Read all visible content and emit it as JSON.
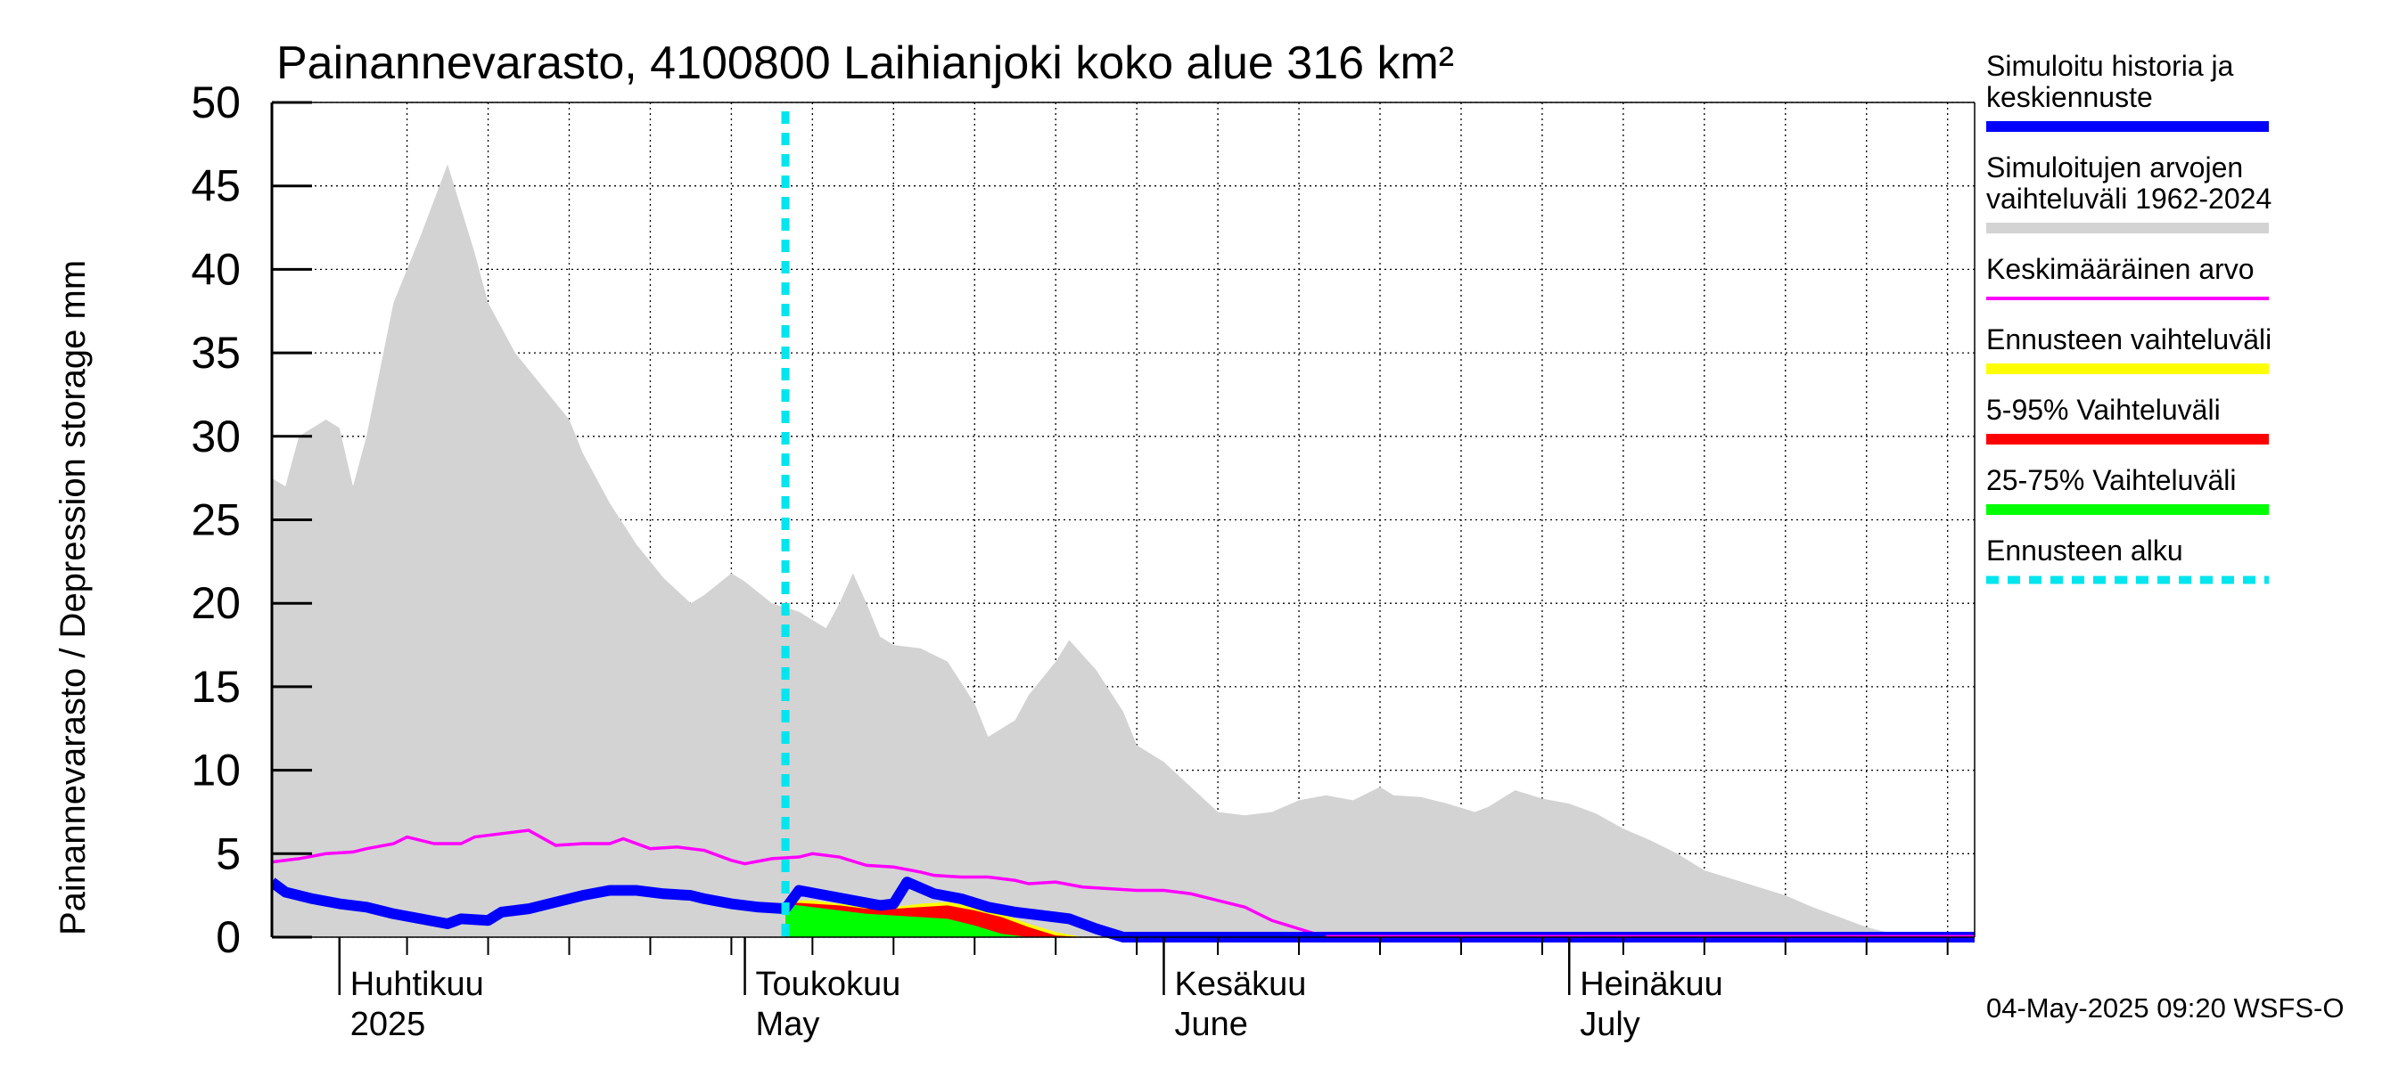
{
  "chart_data": {
    "type": "area",
    "title": "Painannevarasto, 4100800 Laihianjoki koko alue 316 km²",
    "ylabel": "Painannevarasto / Depression storage    mm",
    "ylim": [
      0,
      50
    ],
    "yticks": [
      "0",
      "5",
      "10",
      "15",
      "20",
      "25",
      "30",
      "35",
      "40",
      "45",
      "50"
    ],
    "xlim": [
      "2025-03-27",
      "2025-07-31"
    ],
    "month_labels": [
      {
        "fi": "Huhtikuu",
        "en": "2025",
        "date": "2025-04-01"
      },
      {
        "fi": "Toukokuu",
        "en": "May",
        "date": "2025-05-01"
      },
      {
        "fi": "Kesäkuu",
        "en": "June",
        "date": "2025-06-01"
      },
      {
        "fi": "Heinäkuu",
        "en": "July",
        "date": "2025-07-01"
      }
    ],
    "forecast_start": "2025-05-04",
    "grid": true,
    "legend_placement": "right",
    "colors": {
      "history": "#0000ff",
      "range": "#d3d3d3",
      "mean": "#ff00ff",
      "forecast_range": "#ffff00",
      "p5_95": "#ff0000",
      "p25_75": "#00ff00",
      "forecast_start": "#00e5ee"
    },
    "series": [
      {
        "name": "Simuloitujen arvojen vaihteluväli 1962-2024",
        "kind": "range_band",
        "points": [
          [
            "2025-03-27",
            27.5
          ],
          [
            "2025-03-28",
            27
          ],
          [
            "2025-03-29",
            30
          ],
          [
            "2025-03-30",
            30.5
          ],
          [
            "2025-03-31",
            31
          ],
          [
            "2025-04-01",
            30.5
          ],
          [
            "2025-04-02",
            27
          ],
          [
            "2025-04-03",
            30
          ],
          [
            "2025-04-04",
            34
          ],
          [
            "2025-04-05",
            38
          ],
          [
            "2025-04-07",
            42
          ],
          [
            "2025-04-09",
            46.3
          ],
          [
            "2025-04-11",
            41
          ],
          [
            "2025-04-12",
            38
          ],
          [
            "2025-04-14",
            35
          ],
          [
            "2025-04-16",
            33
          ],
          [
            "2025-04-18",
            31
          ],
          [
            "2025-04-19",
            29
          ],
          [
            "2025-04-21",
            26
          ],
          [
            "2025-04-23",
            23.5
          ],
          [
            "2025-04-25",
            21.5
          ],
          [
            "2025-04-27",
            20
          ],
          [
            "2025-04-28",
            20.5
          ],
          [
            "2025-04-30",
            21.8
          ],
          [
            "2025-05-01",
            21.3
          ],
          [
            "2025-05-03",
            20
          ],
          [
            "2025-05-05",
            19.5
          ],
          [
            "2025-05-07",
            18.5
          ],
          [
            "2025-05-08",
            20
          ],
          [
            "2025-05-09",
            21.8
          ],
          [
            "2025-05-10",
            20
          ],
          [
            "2025-05-11",
            18
          ],
          [
            "2025-05-12",
            17.5
          ],
          [
            "2025-05-14",
            17.3
          ],
          [
            "2025-05-16",
            16.5
          ],
          [
            "2025-05-18",
            14
          ],
          [
            "2025-05-19",
            12
          ],
          [
            "2025-05-21",
            13
          ],
          [
            "2025-05-22",
            14.5
          ],
          [
            "2025-05-24",
            16.5
          ],
          [
            "2025-05-25",
            17.8
          ],
          [
            "2025-05-27",
            16
          ],
          [
            "2025-05-29",
            13.5
          ],
          [
            "2025-05-30",
            11.5
          ],
          [
            "2025-06-01",
            10.5
          ],
          [
            "2025-06-03",
            9
          ],
          [
            "2025-06-05",
            7.5
          ],
          [
            "2025-06-07",
            7.3
          ],
          [
            "2025-06-09",
            7.5
          ],
          [
            "2025-06-11",
            8.2
          ],
          [
            "2025-06-13",
            8.5
          ],
          [
            "2025-06-15",
            8.2
          ],
          [
            "2025-06-17",
            9
          ],
          [
            "2025-06-18",
            8.5
          ],
          [
            "2025-06-20",
            8.4
          ],
          [
            "2025-06-22",
            8
          ],
          [
            "2025-06-24",
            7.5
          ],
          [
            "2025-06-25",
            7.8
          ],
          [
            "2025-06-27",
            8.8
          ],
          [
            "2025-06-29",
            8.3
          ],
          [
            "2025-07-01",
            8
          ],
          [
            "2025-07-03",
            7.4
          ],
          [
            "2025-07-05",
            6.5
          ],
          [
            "2025-07-07",
            5.8
          ],
          [
            "2025-07-09",
            5
          ],
          [
            "2025-07-11",
            4
          ],
          [
            "2025-07-13",
            3.5
          ],
          [
            "2025-07-15",
            3
          ],
          [
            "2025-07-17",
            2.5
          ],
          [
            "2025-07-19",
            1.8
          ],
          [
            "2025-07-21",
            1.2
          ],
          [
            "2025-07-23",
            0.6
          ],
          [
            "2025-07-25",
            0.2
          ],
          [
            "2025-07-27",
            0
          ],
          [
            "2025-07-31",
            0
          ]
        ]
      },
      {
        "name": "Ennusteen vaihteluväli",
        "kind": "forecast_band",
        "points": [
          [
            "2025-05-04",
            2.2
          ],
          [
            "2025-05-06",
            2.2
          ],
          [
            "2025-05-08",
            2
          ],
          [
            "2025-05-10",
            1.8
          ],
          [
            "2025-05-12",
            1.8
          ],
          [
            "2025-05-14",
            2
          ],
          [
            "2025-05-16",
            2.1
          ],
          [
            "2025-05-18",
            1.8
          ],
          [
            "2025-05-20",
            1.4
          ],
          [
            "2025-05-22",
            0.8
          ],
          [
            "2025-05-24",
            0.3
          ],
          [
            "2025-05-26",
            0
          ]
        ]
      },
      {
        "name": "5-95% Vaihteluväli",
        "kind": "forecast_band",
        "points": [
          [
            "2025-05-04",
            2.1
          ],
          [
            "2025-05-06",
            2
          ],
          [
            "2025-05-08",
            1.9
          ],
          [
            "2025-05-10",
            1.7
          ],
          [
            "2025-05-12",
            1.7
          ],
          [
            "2025-05-14",
            1.8
          ],
          [
            "2025-05-16",
            1.9
          ],
          [
            "2025-05-18",
            1.6
          ],
          [
            "2025-05-20",
            1.2
          ],
          [
            "2025-05-22",
            0.6
          ],
          [
            "2025-05-24",
            0.1
          ],
          [
            "2025-05-26",
            0
          ]
        ]
      },
      {
        "name": "25-75% Vaihteluväli",
        "kind": "forecast_band",
        "points": [
          [
            "2025-05-04",
            2
          ],
          [
            "2025-05-06",
            1.8
          ],
          [
            "2025-05-08",
            1.6
          ],
          [
            "2025-05-10",
            1.4
          ],
          [
            "2025-05-12",
            1.3
          ],
          [
            "2025-05-14",
            1.2
          ],
          [
            "2025-05-16",
            1.1
          ],
          [
            "2025-05-18",
            0.7
          ],
          [
            "2025-05-20",
            0.2
          ],
          [
            "2025-05-22",
            0
          ]
        ]
      },
      {
        "name": "Keskimääräinen arvo",
        "kind": "line",
        "points": [
          [
            "2025-03-27",
            4.5
          ],
          [
            "2025-03-29",
            4.7
          ],
          [
            "2025-03-31",
            5
          ],
          [
            "2025-04-02",
            5.1
          ],
          [
            "2025-04-03",
            5.3
          ],
          [
            "2025-04-05",
            5.6
          ],
          [
            "2025-04-06",
            6
          ],
          [
            "2025-04-08",
            5.6
          ],
          [
            "2025-04-10",
            5.6
          ],
          [
            "2025-04-11",
            6
          ],
          [
            "2025-04-13",
            6.2
          ],
          [
            "2025-04-15",
            6.4
          ],
          [
            "2025-04-17",
            5.5
          ],
          [
            "2025-04-19",
            5.6
          ],
          [
            "2025-04-21",
            5.6
          ],
          [
            "2025-04-22",
            5.9
          ],
          [
            "2025-04-24",
            5.3
          ],
          [
            "2025-04-26",
            5.4
          ],
          [
            "2025-04-28",
            5.2
          ],
          [
            "2025-04-30",
            4.6
          ],
          [
            "2025-05-01",
            4.4
          ],
          [
            "2025-05-03",
            4.7
          ],
          [
            "2025-05-05",
            4.8
          ],
          [
            "2025-05-06",
            5
          ],
          [
            "2025-05-08",
            4.8
          ],
          [
            "2025-05-10",
            4.3
          ],
          [
            "2025-05-12",
            4.2
          ],
          [
            "2025-05-14",
            3.9
          ],
          [
            "2025-05-15",
            3.7
          ],
          [
            "2025-05-17",
            3.6
          ],
          [
            "2025-05-19",
            3.6
          ],
          [
            "2025-05-21",
            3.4
          ],
          [
            "2025-05-22",
            3.2
          ],
          [
            "2025-05-24",
            3.3
          ],
          [
            "2025-05-26",
            3
          ],
          [
            "2025-05-28",
            2.9
          ],
          [
            "2025-05-30",
            2.8
          ],
          [
            "2025-06-01",
            2.8
          ],
          [
            "2025-06-03",
            2.6
          ],
          [
            "2025-06-05",
            2.2
          ],
          [
            "2025-06-07",
            1.8
          ],
          [
            "2025-06-09",
            1
          ],
          [
            "2025-06-11",
            0.5
          ],
          [
            "2025-06-13",
            0
          ],
          [
            "2025-07-31",
            0
          ]
        ]
      },
      {
        "name": "Simuloitu historia ja keskiennuste",
        "kind": "line",
        "points": [
          [
            "2025-03-27",
            3.3
          ],
          [
            "2025-03-28",
            2.7
          ],
          [
            "2025-03-30",
            2.3
          ],
          [
            "2025-04-01",
            2
          ],
          [
            "2025-04-03",
            1.8
          ],
          [
            "2025-04-05",
            1.4
          ],
          [
            "2025-04-07",
            1.1
          ],
          [
            "2025-04-09",
            0.8
          ],
          [
            "2025-04-10",
            1.1
          ],
          [
            "2025-04-12",
            1
          ],
          [
            "2025-04-13",
            1.5
          ],
          [
            "2025-04-15",
            1.7
          ],
          [
            "2025-04-17",
            2.1
          ],
          [
            "2025-04-19",
            2.5
          ],
          [
            "2025-04-21",
            2.8
          ],
          [
            "2025-04-23",
            2.8
          ],
          [
            "2025-04-25",
            2.6
          ],
          [
            "2025-04-27",
            2.5
          ],
          [
            "2025-04-28",
            2.3
          ],
          [
            "2025-04-30",
            2
          ],
          [
            "2025-05-02",
            1.8
          ],
          [
            "2025-05-04",
            1.7
          ],
          [
            "2025-05-05",
            2.8
          ],
          [
            "2025-05-07",
            2.5
          ],
          [
            "2025-05-09",
            2.2
          ],
          [
            "2025-05-11",
            1.9
          ],
          [
            "2025-05-12",
            2
          ],
          [
            "2025-05-13",
            3.3
          ],
          [
            "2025-05-15",
            2.6
          ],
          [
            "2025-05-17",
            2.3
          ],
          [
            "2025-05-19",
            1.8
          ],
          [
            "2025-05-21",
            1.5
          ],
          [
            "2025-05-23",
            1.3
          ],
          [
            "2025-05-25",
            1.1
          ],
          [
            "2025-05-27",
            0.5
          ],
          [
            "2025-05-29",
            0
          ],
          [
            "2025-07-31",
            0
          ]
        ]
      }
    ],
    "legend": [
      {
        "lines": [
          "Simuloitu historia ja",
          "keskiennuste"
        ],
        "color": "#0000ff",
        "style": "solid"
      },
      {
        "lines": [
          "Simuloitujen arvojen",
          "vaihteluväli 1962-2024"
        ],
        "color": "#d3d3d3",
        "style": "solid"
      },
      {
        "lines": [
          "Keskimääräinen arvo"
        ],
        "color": "#ff00ff",
        "style": "thin"
      },
      {
        "lines": [
          "Ennusteen vaihteluväli"
        ],
        "color": "#ffff00",
        "style": "solid"
      },
      {
        "lines": [
          "5-95% Vaihteluväli"
        ],
        "color": "#ff0000",
        "style": "solid"
      },
      {
        "lines": [
          "25-75% Vaihteluväli"
        ],
        "color": "#00ff00",
        "style": "solid"
      },
      {
        "lines": [
          "Ennusteen alku"
        ],
        "color": "#00e5ee",
        "style": "dashed"
      }
    ],
    "footer": "04-May-2025 09:20 WSFS-O"
  }
}
